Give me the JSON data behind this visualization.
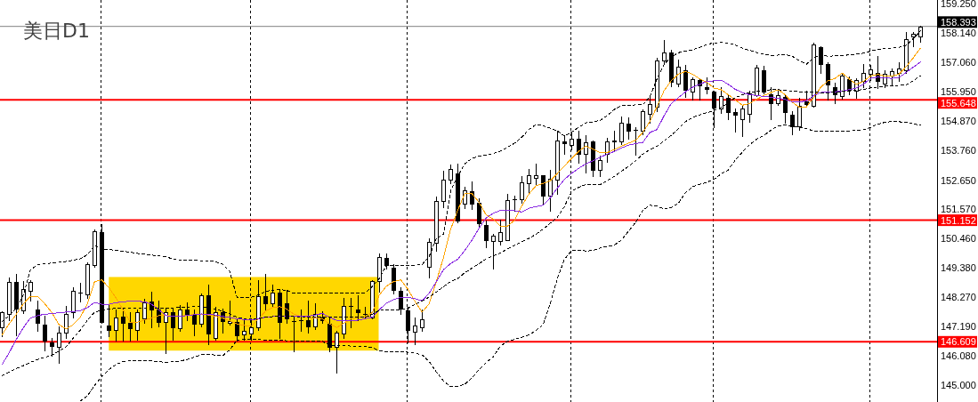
{
  "chart_data": {
    "type": "candlestick",
    "title": "美日D1",
    "categories": [
      null,
      null,
      null,
      null,
      null,
      null,
      null,
      null,
      null,
      null,
      null,
      null,
      null,
      null,
      null,
      null,
      null,
      null,
      null,
      null,
      null,
      null,
      null,
      null,
      null,
      null,
      null,
      null,
      null,
      null,
      null,
      null,
      null,
      null,
      null,
      null,
      null,
      null,
      null,
      null,
      null,
      null,
      null,
      null,
      null,
      null,
      null,
      null,
      null,
      null,
      null,
      null,
      null,
      null,
      null,
      null,
      null,
      null,
      null,
      null,
      null,
      null,
      null,
      null,
      null,
      null,
      null,
      null,
      null,
      null,
      null,
      null,
      null,
      null,
      null,
      null,
      null,
      null,
      null,
      null,
      null,
      null,
      null,
      null,
      null,
      null,
      null,
      null,
      null,
      null,
      null,
      null,
      null,
      null,
      null,
      null,
      null,
      null,
      null,
      null,
      null,
      null,
      null,
      null,
      null,
      null,
      null,
      null,
      null,
      null,
      null,
      null,
      null,
      null,
      null,
      null,
      null,
      null,
      null,
      null,
      null,
      null,
      null,
      null,
      null,
      null,
      null,
      null,
      null,
      null
    ],
    "ohlc": [
      [
        147.14,
        147.75,
        146.81,
        147.72
      ],
      [
        147.64,
        149.02,
        147.42,
        148.83
      ],
      [
        148.83,
        149.16,
        146.86,
        147.84
      ],
      [
        147.78,
        148.89,
        147.67,
        148.58
      ],
      [
        148.5,
        148.91,
        148.14,
        148.83
      ],
      [
        147.83,
        148.16,
        147.03,
        147.31
      ],
      [
        147.25,
        147.59,
        146.28,
        146.64
      ],
      [
        146.57,
        146.76,
        146.09,
        146.44
      ],
      [
        146.42,
        147.2,
        145.81,
        146.95
      ],
      [
        146.95,
        147.94,
        146.75,
        147.64
      ],
      [
        147.7,
        148.64,
        147.53,
        148.53
      ],
      [
        148.44,
        148.8,
        148.12,
        148.44
      ],
      [
        148.38,
        149.58,
        148.25,
        149.52
      ],
      [
        149.49,
        150.82,
        149.41,
        150.74
      ],
      [
        150.71,
        150.99,
        147.31,
        147.36
      ],
      [
        147.23,
        148.03,
        146.81,
        147.05
      ],
      [
        147.05,
        147.81,
        146.64,
        147.51
      ],
      [
        147.56,
        147.86,
        146.64,
        147.31
      ],
      [
        147.31,
        147.7,
        146.64,
        147.12
      ],
      [
        147.05,
        147.81,
        146.7,
        147.72
      ],
      [
        147.5,
        148.22,
        147.31,
        148.08
      ],
      [
        148.1,
        148.49,
        147.14,
        147.81
      ],
      [
        147.81,
        148.14,
        147.2,
        147.34
      ],
      [
        147.34,
        147.86,
        146.2,
        147.7
      ],
      [
        147.72,
        147.86,
        146.7,
        147.14
      ],
      [
        147.12,
        147.97,
        147.03,
        147.81
      ],
      [
        147.83,
        148.08,
        147.42,
        147.64
      ],
      [
        147.64,
        147.81,
        146.86,
        147.27
      ],
      [
        147.27,
        148.42,
        147.2,
        148.36
      ],
      [
        148.36,
        148.75,
        146.53,
        146.92
      ],
      [
        146.75,
        147.92,
        146.7,
        147.72
      ],
      [
        147.72,
        147.86,
        146.94,
        147.39
      ],
      [
        147.31,
        148.16,
        147.25,
        147.4
      ],
      [
        147.36,
        147.47,
        146.64,
        146.86
      ],
      [
        146.9,
        147.42,
        146.7,
        147.03
      ],
      [
        146.92,
        147.45,
        146.7,
        147.16
      ],
      [
        147.14,
        148.91,
        147.05,
        148.33
      ],
      [
        148.33,
        149.14,
        147.81,
        148.06
      ],
      [
        148.05,
        148.75,
        147.92,
        148.45
      ],
      [
        148.45,
        148.58,
        146.75,
        147.34
      ],
      [
        148.05,
        148.56,
        147.31,
        147.47
      ],
      [
        147.39,
        147.59,
        146.25,
        147.39
      ],
      [
        147.41,
        147.81,
        147.03,
        147.41
      ],
      [
        147.42,
        148.16,
        146.94,
        147.19
      ],
      [
        147.19,
        148.05,
        147.09,
        147.64
      ],
      [
        147.53,
        147.75,
        147.31,
        147.42
      ],
      [
        147.27,
        147.53,
        146.25,
        146.42
      ],
      [
        146.42,
        147.03,
        145.46,
        146.94
      ],
      [
        146.92,
        148.25,
        146.75,
        147.94
      ],
      [
        147.94,
        148.25,
        147.14,
        147.94
      ],
      [
        147.83,
        148.36,
        147.42,
        147.72
      ],
      [
        147.64,
        147.92,
        147.47,
        147.64
      ],
      [
        147.53,
        148.91,
        147.47,
        148.88
      ],
      [
        148.88,
        149.91,
        148.47,
        149.78
      ],
      [
        149.75,
        149.91,
        149.36,
        149.49
      ],
      [
        149.38,
        149.52,
        148.42,
        148.56
      ],
      [
        148.53,
        148.64,
        147.64,
        147.86
      ],
      [
        147.78,
        147.92,
        146.59,
        147.05
      ],
      [
        146.99,
        147.53,
        146.53,
        147.22
      ],
      [
        147.16,
        147.81,
        147.01,
        147.45
      ],
      [
        149.41,
        150.47,
        149.02,
        150.35
      ],
      [
        150.3,
        152.02,
        150.02,
        151.87
      ],
      [
        151.87,
        152.99,
        151.63,
        152.66
      ],
      [
        152.68,
        153.23,
        152.55,
        153.07
      ],
      [
        152.9,
        153.25,
        151.08,
        151.13
      ],
      [
        151.76,
        152.4,
        151.59,
        152.28
      ],
      [
        152.24,
        152.6,
        151.57,
        151.76
      ],
      [
        151.82,
        151.96,
        150.91,
        151.04
      ],
      [
        150.96,
        151.13,
        150.15,
        150.41
      ],
      [
        150.38,
        150.63,
        149.36,
        150.58
      ],
      [
        150.38,
        151.18,
        150.24,
        150.71
      ],
      [
        150.41,
        152.15,
        150.41,
        151.9
      ],
      [
        151.94,
        152.07,
        151.52,
        151.94
      ],
      [
        151.94,
        152.79,
        151.79,
        152.57
      ],
      [
        152.52,
        153.07,
        152.18,
        152.83
      ],
      [
        152.74,
        153.25,
        152.46,
        152.83
      ],
      [
        152.83,
        152.85,
        151.74,
        152.07
      ],
      [
        152.07,
        153.03,
        151.52,
        152.7
      ],
      [
        152.67,
        154.45,
        152.13,
        154.14
      ],
      [
        154.1,
        154.34,
        153.62,
        154.03
      ],
      [
        153.98,
        154.45,
        153.79,
        154.18
      ],
      [
        154.18,
        154.48,
        153.29,
        153.62
      ],
      [
        153.62,
        154.34,
        152.92,
        154.07
      ],
      [
        154.08,
        154.12,
        152.79,
        153.03
      ],
      [
        153.03,
        153.56,
        152.81,
        153.4
      ],
      [
        153.62,
        154.23,
        153.34,
        154.1
      ],
      [
        154.14,
        154.48,
        153.73,
        154.1
      ],
      [
        154.1,
        155.03,
        153.99,
        154.81
      ],
      [
        154.75,
        155.01,
        154.18,
        154.48
      ],
      [
        154.53,
        154.62,
        153.59,
        154.53
      ],
      [
        154.48,
        155.3,
        154.36,
        155.23
      ],
      [
        155.14,
        155.8,
        154.81,
        155.5
      ],
      [
        155.39,
        157.22,
        155.23,
        157.13
      ],
      [
        157.11,
        157.89,
        157.0,
        157.42
      ],
      [
        157.42,
        157.53,
        156.17,
        156.31
      ],
      [
        156.26,
        157.17,
        156.17,
        156.89
      ],
      [
        156.76,
        156.97,
        155.76,
        156.03
      ],
      [
        155.97,
        156.5,
        155.67,
        156.42
      ],
      [
        156.39,
        156.45,
        155.67,
        156.19
      ],
      [
        156.14,
        156.5,
        155.89,
        156.06
      ],
      [
        155.95,
        156.0,
        154.62,
        155.36
      ],
      [
        155.31,
        156.12,
        155.17,
        155.78
      ],
      [
        155.72,
        155.83,
        154.92,
        155.2
      ],
      [
        155.19,
        155.34,
        154.46,
        155.1
      ],
      [
        154.93,
        155.45,
        154.29,
        155.34
      ],
      [
        155.12,
        155.98,
        154.84,
        155.89
      ],
      [
        155.84,
        156.94,
        155.78,
        156.87
      ],
      [
        156.76,
        156.91,
        155.89,
        155.95
      ],
      [
        155.87,
        156.12,
        154.93,
        155.52
      ],
      [
        155.54,
        156.0,
        155.45,
        155.82
      ],
      [
        155.76,
        155.84,
        154.78,
        155.18
      ],
      [
        155.1,
        155.21,
        154.37,
        154.67
      ],
      [
        154.67,
        155.73,
        154.54,
        155.42
      ],
      [
        155.59,
        155.98,
        155.39,
        155.5
      ],
      [
        155.43,
        157.78,
        155.39,
        157.72
      ],
      [
        157.61,
        157.66,
        156.67,
        157.0
      ],
      [
        157.0,
        157.06,
        155.67,
        156.23
      ],
      [
        156.11,
        156.28,
        155.53,
        155.86
      ],
      [
        155.78,
        156.67,
        155.69,
        156.56
      ],
      [
        156.42,
        156.53,
        155.87,
        156.03
      ],
      [
        155.98,
        156.47,
        155.73,
        156.39
      ],
      [
        156.34,
        156.98,
        156.11,
        156.64
      ],
      [
        156.61,
        156.95,
        156.39,
        156.8
      ],
      [
        156.65,
        157.28,
        156.09,
        156.36
      ],
      [
        156.27,
        156.76,
        156.11,
        156.61
      ],
      [
        156.56,
        156.83,
        156.23,
        156.72
      ],
      [
        156.67,
        157.06,
        156.34,
        156.81
      ],
      [
        156.76,
        158.17,
        156.67,
        157.92
      ],
      [
        158.02,
        158.19,
        157.66,
        158.13
      ],
      [
        158.02,
        158.4,
        157.83,
        158.39
      ]
    ],
    "series": [
      {
        "type": "line",
        "color": "#ffa500",
        "values": [
          146.87,
          147.28,
          147.64,
          148.03,
          148.31,
          148.31,
          148.03,
          147.7,
          147.25,
          147.09,
          147.25,
          147.53,
          148.03,
          148.86,
          148.92,
          148.64,
          148.25,
          147.81,
          147.34,
          147.34,
          147.42,
          147.5,
          147.59,
          147.59,
          147.57,
          147.56,
          147.61,
          147.62,
          147.64,
          147.61,
          147.56,
          147.5,
          147.39,
          147.28,
          147.22,
          147.2,
          147.45,
          147.75,
          147.89,
          147.92,
          147.83,
          147.64,
          147.56,
          147.52,
          147.5,
          147.47,
          147.28,
          147.14,
          147.31,
          147.45,
          147.52,
          147.55,
          147.7,
          148.36,
          148.69,
          148.86,
          148.92,
          148.58,
          148.12,
          147.72,
          148.03,
          148.86,
          149.75,
          150.8,
          151.52,
          152.15,
          152.15,
          151.82,
          151.35,
          151.19,
          150.93,
          150.93,
          151.15,
          151.68,
          152.13,
          152.44,
          152.52,
          152.63,
          152.9,
          153.18,
          153.46,
          153.73,
          153.92,
          153.81,
          153.68,
          153.68,
          153.79,
          153.92,
          154.03,
          154.14,
          154.43,
          154.84,
          155.4,
          156.0,
          156.36,
          156.61,
          156.71,
          156.61,
          156.43,
          156.31,
          156.09,
          156.03,
          155.84,
          155.65,
          155.45,
          155.51,
          155.67,
          155.81,
          155.92,
          156.03,
          155.84,
          155.56,
          155.37,
          155.39,
          155.73,
          156.12,
          156.36,
          156.45,
          156.65,
          156.43,
          156.23,
          156.34,
          156.54,
          156.6,
          156.54,
          156.54,
          156.61,
          156.89,
          157.22,
          157.58
        ]
      },
      {
        "type": "line",
        "color": "#8a2be2",
        "values": [
          145.76,
          146.2,
          146.7,
          147.14,
          147.5,
          147.59,
          147.64,
          147.66,
          147.7,
          147.72,
          147.74,
          147.77,
          147.89,
          148.08,
          148.01,
          148.01,
          148.07,
          148.11,
          148.12,
          148.12,
          148.11,
          148.01,
          147.81,
          147.59,
          147.56,
          147.57,
          147.59,
          147.62,
          147.65,
          147.64,
          147.61,
          147.56,
          147.52,
          147.47,
          147.44,
          147.42,
          147.47,
          147.53,
          147.55,
          147.56,
          147.56,
          147.56,
          147.56,
          147.57,
          147.61,
          147.67,
          147.53,
          147.41,
          147.39,
          147.39,
          147.42,
          147.47,
          147.53,
          147.81,
          148.05,
          148.19,
          148.27,
          148.27,
          148.22,
          148.14,
          148.42,
          148.86,
          149.3,
          149.53,
          149.69,
          150.02,
          150.41,
          150.85,
          151.24,
          151.41,
          151.52,
          151.52,
          151.51,
          151.46,
          151.6,
          151.66,
          151.71,
          151.99,
          152.35,
          152.68,
          152.9,
          153.09,
          153.26,
          153.37,
          153.5,
          153.62,
          153.72,
          153.85,
          153.96,
          154.01,
          154.06,
          154.43,
          154.54,
          155.06,
          155.51,
          155.73,
          155.95,
          156.12,
          156.23,
          156.34,
          156.36,
          156.39,
          156.23,
          156.04,
          155.92,
          155.84,
          155.81,
          155.78,
          155.75,
          155.71,
          155.67,
          155.58,
          155.56,
          155.62,
          155.81,
          155.92,
          155.95,
          155.95,
          155.98,
          156.03,
          156.09,
          156.23,
          156.45,
          156.5,
          156.47,
          156.45,
          156.49,
          156.67,
          156.87,
          157.06
        ]
      },
      {
        "type": "line",
        "color": "#000000",
        "line_style": "dashed",
        "values": [
          147.36,
          147.59,
          147.86,
          148.36,
          149.3,
          149.49,
          149.53,
          149.55,
          149.58,
          149.61,
          149.66,
          149.71,
          149.86,
          150.22,
          150.08,
          150.06,
          150.02,
          149.99,
          149.96,
          149.91,
          149.88,
          149.85,
          149.82,
          149.78,
          149.71,
          149.67,
          149.66,
          149.65,
          149.64,
          149.64,
          149.6,
          149.51,
          149.23,
          148.27,
          148.27,
          148.27,
          148.36,
          148.49,
          148.54,
          148.56,
          148.53,
          148.42,
          148.43,
          148.44,
          148.44,
          148.44,
          148.44,
          148.44,
          148.44,
          148.44,
          148.44,
          148.44,
          148.67,
          148.97,
          149.47,
          149.47,
          149.47,
          149.47,
          149.47,
          149.49,
          149.8,
          150.47,
          150.63,
          152.24,
          152.79,
          153.26,
          153.46,
          153.55,
          153.59,
          153.65,
          153.73,
          153.88,
          154.03,
          154.25,
          154.54,
          154.73,
          154.68,
          154.59,
          154.49,
          154.29,
          154.45,
          154.62,
          154.79,
          154.83,
          154.88,
          155.06,
          155.29,
          155.43,
          155.45,
          155.46,
          155.47,
          155.76,
          156.43,
          156.98,
          157.25,
          157.41,
          157.47,
          157.52,
          157.61,
          157.72,
          157.78,
          157.79,
          157.78,
          157.69,
          157.58,
          157.5,
          157.42,
          157.36,
          157.31,
          157.32,
          157.34,
          157.28,
          157.11,
          156.98,
          157.22,
          157.31,
          157.28,
          157.29,
          157.3,
          157.33,
          157.36,
          157.39,
          157.47,
          157.53,
          157.56,
          157.58,
          157.61,
          157.69,
          157.94,
          158.22
        ]
      },
      {
        "type": "line",
        "color": "#000000",
        "line_style": "dashed",
        "values": [
          145.35,
          145.48,
          145.61,
          145.72,
          145.84,
          145.95,
          146.03,
          146.11,
          146.26,
          146.42,
          146.75,
          147.05,
          147.42,
          147.72,
          147.78,
          147.83,
          147.86,
          147.88,
          147.88,
          147.88,
          147.88,
          147.88,
          147.87,
          147.87,
          147.88,
          147.89,
          147.91,
          147.92,
          147.92,
          147.89,
          147.83,
          147.75,
          147.64,
          147.53,
          147.47,
          147.45,
          147.5,
          147.53,
          147.55,
          147.56,
          147.56,
          147.55,
          147.55,
          147.54,
          147.54,
          147.53,
          147.53,
          147.52,
          147.52,
          147.52,
          147.52,
          147.52,
          147.64,
          147.78,
          147.81,
          147.81,
          147.81,
          147.86,
          148.01,
          148.14,
          148.28,
          148.47,
          148.67,
          148.86,
          148.97,
          149.19,
          149.36,
          149.53,
          149.71,
          149.82,
          149.93,
          150.08,
          150.21,
          150.35,
          150.47,
          150.63,
          150.82,
          151.04,
          151.26,
          151.66,
          152.24,
          152.38,
          152.49,
          152.48,
          152.48,
          152.63,
          152.79,
          152.98,
          153.16,
          153.37,
          153.62,
          153.79,
          153.92,
          154.12,
          154.32,
          154.57,
          154.84,
          154.99,
          155.09,
          155.17,
          155.25,
          155.36,
          155.54,
          155.73,
          155.84,
          155.92,
          155.97,
          156.0,
          156.03,
          156.03,
          156.0,
          155.98,
          155.95,
          155.94,
          155.95,
          155.92,
          155.92,
          155.94,
          155.96,
          155.98,
          156.0,
          156.04,
          156.09,
          156.13,
          156.16,
          156.18,
          156.19,
          156.21,
          156.36,
          156.55
        ]
      },
      {
        "type": "line",
        "color": "#000000",
        "line_style": "dashed",
        "values": [
          null,
          null,
          null,
          null,
          null,
          null,
          null,
          null,
          null,
          null,
          null,
          144.4,
          144.59,
          144.98,
          145.31,
          145.57,
          145.76,
          145.87,
          145.9,
          145.9,
          145.9,
          145.89,
          145.87,
          145.84,
          145.86,
          145.89,
          145.95,
          146.03,
          146.13,
          146.15,
          146.11,
          146.09,
          146.31,
          146.68,
          146.7,
          146.7,
          146.69,
          146.68,
          146.67,
          146.67,
          146.65,
          146.65,
          146.64,
          146.64,
          146.64,
          146.63,
          146.48,
          146.48,
          146.47,
          146.45,
          146.44,
          146.43,
          146.39,
          146.28,
          146.24,
          146.23,
          146.23,
          146.22,
          146.18,
          146.12,
          145.87,
          145.48,
          145.15,
          144.93,
          144.95,
          145.02,
          145.26,
          145.57,
          145.84,
          146.05,
          146.45,
          146.63,
          146.7,
          146.78,
          146.87,
          147.03,
          147.25,
          148.03,
          148.97,
          149.69,
          150.02,
          150.04,
          150.0,
          150.02,
          150.11,
          150.18,
          150.22,
          150.41,
          150.74,
          151.07,
          151.52,
          151.71,
          151.68,
          151.57,
          151.63,
          151.79,
          152.18,
          152.4,
          152.49,
          152.57,
          152.68,
          152.88,
          153.03,
          153.4,
          153.7,
          153.97,
          154.18,
          154.32,
          154.51,
          154.68,
          154.7,
          154.68,
          154.62,
          154.57,
          154.49,
          154.48,
          154.48,
          154.48,
          154.48,
          154.49,
          154.5,
          154.53,
          154.62,
          154.74,
          154.81,
          154.84,
          154.83,
          154.81,
          154.75,
          154.7
        ]
      }
    ],
    "ylim": [
      144.36,
      159.38
    ],
    "yticks": [
      {
        "value": 145,
        "label": "145.000"
      },
      {
        "value": 146.08,
        "label": "146.080"
      },
      {
        "value": 147.19,
        "label": "147.190"
      },
      {
        "value": 148.27,
        "label": "148.270"
      },
      {
        "value": 149.38,
        "label": "149.380"
      },
      {
        "value": 150.46,
        "label": "150.460"
      },
      {
        "value": 151.57,
        "label": "151.570"
      },
      {
        "value": 152.65,
        "label": "152.650"
      },
      {
        "value": 153.76,
        "label": "153.760"
      },
      {
        "value": 154.87,
        "label": "154.870"
      },
      {
        "value": 155.95,
        "label": "155.950"
      },
      {
        "value": 157.06,
        "label": "157.060"
      },
      {
        "value": 158.14,
        "label": "158.140"
      },
      {
        "value": 159.25,
        "label": "159.250"
      }
    ],
    "ref_lines": [
      {
        "axis": "y",
        "value": 158.393,
        "label": "158.393",
        "color": "#808080"
      },
      {
        "axis": "y",
        "value": 155.648,
        "label": "155.648",
        "color": "#ff0000"
      },
      {
        "axis": "y",
        "value": 151.152,
        "label": "151.152",
        "color": "#ff0000"
      },
      {
        "axis": "y",
        "value": 146.609,
        "label": "146.609",
        "color": "#ff0000"
      }
    ],
    "bands": [
      {
        "axis": "y",
        "from": 146.28,
        "to": 149.03,
        "color": "#ffd700"
      }
    ]
  }
}
